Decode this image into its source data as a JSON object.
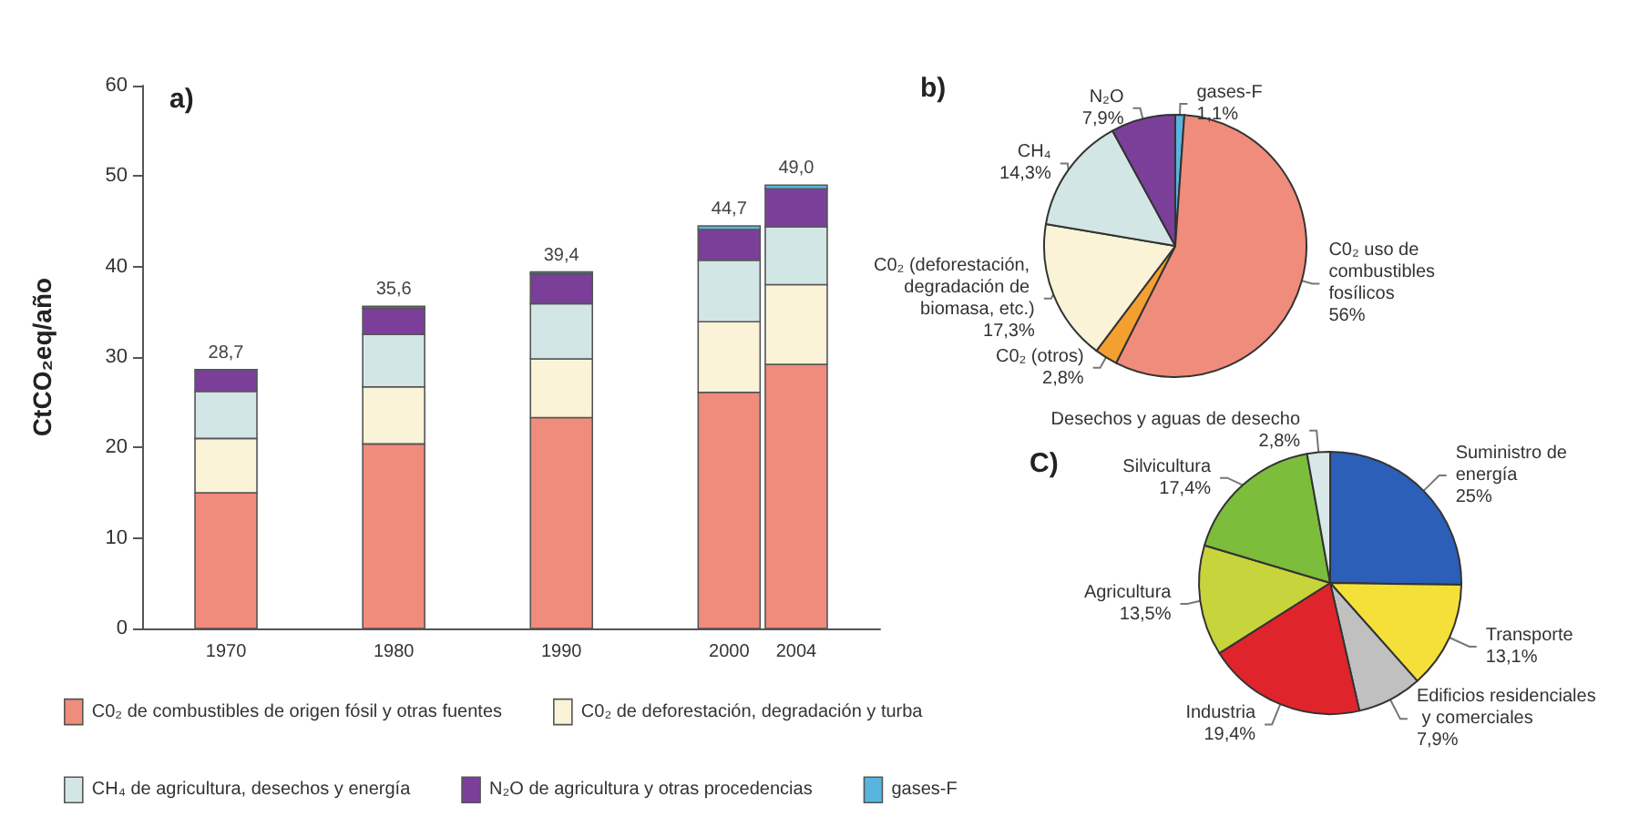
{
  "chart_data": [
    {
      "type": "bar",
      "title": "a)",
      "ylabel": "CtCO₂eq/año",
      "x": [
        1970,
        1980,
        1990,
        2000,
        2004
      ],
      "xlim": [
        1965,
        2009
      ],
      "xticks": [
        1970,
        1980,
        1990,
        2000,
        2004
      ],
      "ylim": [
        0,
        60
      ],
      "yticks": [
        0,
        10,
        20,
        30,
        40,
        50,
        60
      ],
      "stacked": true,
      "legend": "bottom",
      "totals": [
        "28,7",
        "35,6",
        "39,4",
        "44,7",
        "49,0"
      ],
      "series": [
        {
          "name": "C0₂ de combustibles de origen fósil y otras fuentes",
          "color": "#f08c7c",
          "values": [
            15.0,
            20.4,
            23.3,
            26.1,
            29.2
          ]
        },
        {
          "name": "C0₂ de deforestación, degradación y turba",
          "color": "#faf3d8",
          "values": [
            6.0,
            6.3,
            6.5,
            7.8,
            8.8
          ]
        },
        {
          "name": "CH₄ de agricultura, desechos y energía",
          "color": "#d3e6e6",
          "values": [
            5.2,
            5.8,
            6.1,
            6.8,
            6.4
          ]
        },
        {
          "name": "N₂O de agricultura y otras procedencias",
          "color": "#7b3f9a",
          "values": [
            2.4,
            2.9,
            3.3,
            3.4,
            4.2
          ]
        },
        {
          "name": "gases-F",
          "color": "#5ab4e0",
          "values": [
            null,
            0.2,
            0.2,
            0.4,
            0.4
          ]
        }
      ]
    },
    {
      "type": "pie",
      "title": "b)",
      "categories": [
        "gases-F",
        "C0₂ uso de combustibles fosílicos",
        "C0₂ (otros)",
        "C0₂ (deforestación, degradación de biomasa, etc.)",
        "CH₄",
        "N₂O"
      ],
      "values": [
        1.1,
        56,
        2.8,
        17.3,
        14.3,
        7.9
      ],
      "value_labels": [
        "1,1%",
        "56%",
        "2,8%",
        "17,3%",
        "14,3%",
        "7,9%"
      ],
      "colors": [
        "#5ab4e0",
        "#f08c7c",
        "#f4a030",
        "#faf3d8",
        "#d3e6e6",
        "#7b3f9a"
      ]
    },
    {
      "type": "pie",
      "title": "C)",
      "categories": [
        "Suministro de energía",
        "Transporte",
        "Edificios residenciales y comerciales",
        "Industria",
        "Agricultura",
        "Silvicultura",
        "Desechos y aguas de desecho"
      ],
      "values": [
        25,
        13.1,
        7.9,
        19.4,
        13.5,
        17.4,
        2.8
      ],
      "value_labels": [
        "25%",
        "13,1%",
        "7,9%",
        "19,4%",
        "13,5%",
        "17,4%",
        "2,8%"
      ],
      "colors": [
        "#2b5fb8",
        "#f5e03a",
        "#c0c0c0",
        "#e0242c",
        "#c8d43c",
        "#7cbd3c",
        "#d8e8e8"
      ]
    }
  ]
}
